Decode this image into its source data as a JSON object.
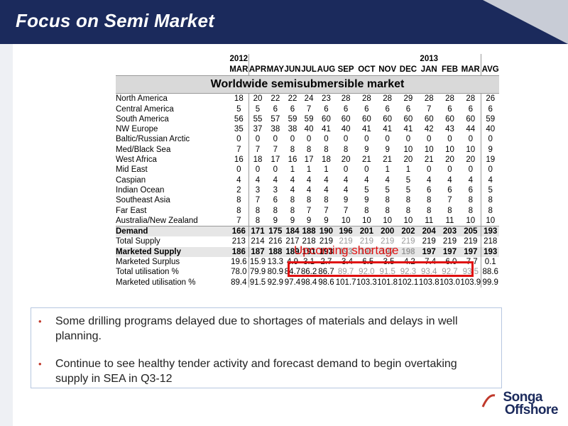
{
  "title": "Focus on Semi Market",
  "table": {
    "year_start": "2012",
    "year_end": "2013",
    "band_title": "Worldwide semisubmersible market",
    "months": [
      "MAR",
      "APR",
      "MAY",
      "JUN",
      "JUL",
      "AUG",
      "SEP",
      "OCT",
      "NOV",
      "DEC",
      "JAN",
      "FEB",
      "MAR",
      "AVG"
    ],
    "rows": [
      {
        "label": "North America",
        "values": [
          "18",
          "20",
          "22",
          "22",
          "24",
          "23",
          "28",
          "28",
          "28",
          "29",
          "28",
          "28",
          "28",
          "26"
        ]
      },
      {
        "label": "Central America",
        "values": [
          "5",
          "5",
          "6",
          "6",
          "7",
          "6",
          "6",
          "6",
          "6",
          "6",
          "7",
          "6",
          "6",
          "6"
        ]
      },
      {
        "label": "South America",
        "values": [
          "56",
          "55",
          "57",
          "59",
          "59",
          "60",
          "60",
          "60",
          "60",
          "60",
          "60",
          "60",
          "60",
          "59"
        ]
      },
      {
        "label": "NW Europe",
        "values": [
          "35",
          "37",
          "38",
          "38",
          "40",
          "41",
          "40",
          "41",
          "41",
          "41",
          "42",
          "43",
          "44",
          "40"
        ]
      },
      {
        "label": "Baltic/Russian Arctic",
        "values": [
          "0",
          "0",
          "0",
          "0",
          "0",
          "0",
          "0",
          "0",
          "0",
          "0",
          "0",
          "0",
          "0",
          "0"
        ]
      },
      {
        "label": "Med/Black Sea",
        "values": [
          "7",
          "7",
          "7",
          "8",
          "8",
          "8",
          "8",
          "9",
          "9",
          "10",
          "10",
          "10",
          "10",
          "9"
        ]
      },
      {
        "label": "West Africa",
        "values": [
          "16",
          "18",
          "17",
          "16",
          "17",
          "18",
          "20",
          "21",
          "21",
          "20",
          "21",
          "20",
          "20",
          "19"
        ]
      },
      {
        "label": "Mid East",
        "values": [
          "0",
          "0",
          "0",
          "1",
          "1",
          "1",
          "0",
          "0",
          "1",
          "1",
          "0",
          "0",
          "0",
          "0"
        ]
      },
      {
        "label": "Caspian",
        "values": [
          "4",
          "4",
          "4",
          "4",
          "4",
          "4",
          "4",
          "4",
          "4",
          "5",
          "4",
          "4",
          "4",
          "4"
        ]
      },
      {
        "label": "Indian Ocean",
        "values": [
          "2",
          "3",
          "3",
          "4",
          "4",
          "4",
          "4",
          "5",
          "5",
          "5",
          "6",
          "6",
          "6",
          "5"
        ]
      },
      {
        "label": "Southeast Asia",
        "values": [
          "8",
          "7",
          "6",
          "8",
          "8",
          "8",
          "9",
          "9",
          "8",
          "8",
          "8",
          "7",
          "8",
          "8"
        ]
      },
      {
        "label": "Far East",
        "values": [
          "8",
          "8",
          "8",
          "8",
          "7",
          "7",
          "7",
          "8",
          "8",
          "8",
          "8",
          "8",
          "8",
          "8"
        ]
      },
      {
        "label": "Australia/New Zealand",
        "values": [
          "7",
          "8",
          "9",
          "9",
          "9",
          "9",
          "10",
          "10",
          "10",
          "10",
          "11",
          "11",
          "10",
          "10"
        ]
      }
    ],
    "demand": {
      "label": "Demand",
      "values": [
        "166",
        "171",
        "175",
        "184",
        "188",
        "190",
        "196",
        "201",
        "200",
        "202",
        "204",
        "203",
        "205",
        "193"
      ]
    },
    "total_supply": {
      "label": "Total Supply",
      "values": [
        "213",
        "214",
        "216",
        "217",
        "218",
        "219",
        "219",
        "219",
        "219",
        "219",
        "219",
        "219",
        "219",
        "218"
      ]
    },
    "marketed_supply": {
      "label": "Marketed Supply",
      "values": [
        "186",
        "187",
        "188",
        "189",
        "191",
        "193",
        "193",
        "195",
        "197",
        "198",
        "197",
        "197",
        "197",
        "193"
      ]
    },
    "marketed_surplus": {
      "label": "Marketed Surplus",
      "values": [
        "19.6",
        "15.9",
        "13.3",
        "4.9",
        "3.1",
        "2.7",
        "-3.4",
        "-6.5",
        "-3.5",
        "-4.2",
        "-7.4",
        "-6.0",
        "-7.7",
        "0.1"
      ]
    },
    "total_util": {
      "label": "Total utilisation %",
      "values": [
        "78.0",
        "79.9",
        "80.9",
        "84.7",
        "86.2",
        "86.7",
        "89.7",
        "92.0",
        "91.5",
        "92.3",
        "93.4",
        "92.7",
        "93.5",
        "88.6"
      ]
    },
    "marketed_util": {
      "label": "Marketed utilisation %",
      "values": [
        "89.4",
        "91.5",
        "92.9",
        "97.4",
        "98.4",
        "98.6",
        "101.7",
        "103.3",
        "101.8",
        "102.1",
        "103.8",
        "103.0",
        "103.9",
        "99.9"
      ]
    },
    "shortage_label": "Upcoming shortage"
  },
  "bullets": [
    "Some drilling programs delayed due to shortages of materials and delays in well planning.",
    "Continue to see healthy tender activity and forecast demand to begin overtaking supply in SEA in Q3-12"
  ],
  "logo": {
    "line1": "Songa",
    "line2": "Offshore"
  },
  "colors": {
    "header": "#1b2a5c",
    "highlight": "#e01010",
    "bullet_dot": "#c0392b"
  }
}
